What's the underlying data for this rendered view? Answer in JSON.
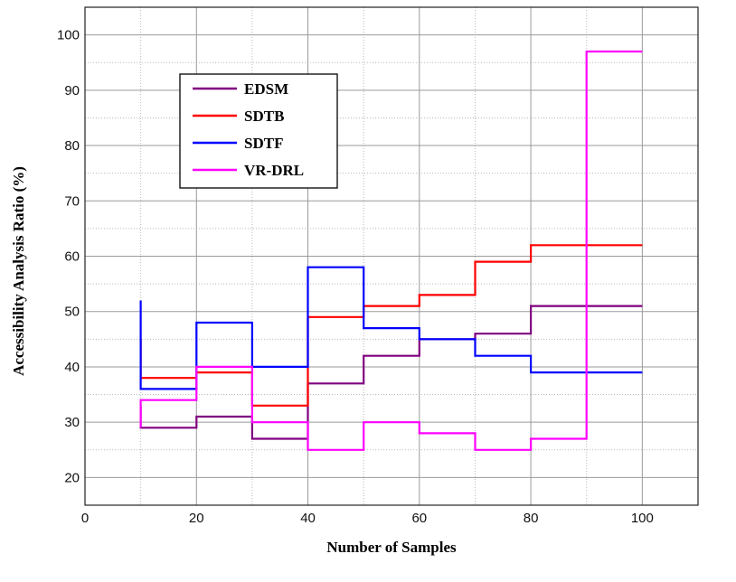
{
  "chart_data": {
    "type": "line",
    "step": true,
    "xlabel": "Number of Samples",
    "ylabel": "Accessibility Analysis  Ratio (%)",
    "xlim": [
      0,
      110
    ],
    "ylim": [
      15,
      105
    ],
    "x_ticks": [
      0,
      20,
      40,
      60,
      80,
      100
    ],
    "y_ticks": [
      20,
      30,
      40,
      50,
      60,
      70,
      80,
      90,
      100
    ],
    "grid": true,
    "legend_position": "upper-left",
    "series": [
      {
        "name": "EDSM",
        "color": "#800080",
        "x": [
          10,
          20,
          30,
          40,
          50,
          60,
          70,
          80,
          90,
          100
        ],
        "values": [
          33,
          29,
          31,
          27,
          37,
          42,
          45,
          46,
          51,
          51
        ]
      },
      {
        "name": "SDTB",
        "color": "#ff0000",
        "x": [
          10,
          20,
          30,
          40,
          50,
          60,
          70,
          80,
          90,
          100
        ],
        "values": [
          45,
          38,
          39,
          33,
          49,
          51,
          53,
          59,
          62,
          62
        ]
      },
      {
        "name": "SDTF",
        "color": "#0000ff",
        "x": [
          10,
          20,
          30,
          40,
          50,
          60,
          70,
          80,
          90,
          100
        ],
        "values": [
          52,
          36,
          48,
          40,
          58,
          47,
          45,
          42,
          39,
          39
        ]
      },
      {
        "name": "VR-DRL",
        "color": "#ff00ff",
        "x": [
          10,
          20,
          30,
          40,
          50,
          60,
          70,
          80,
          90,
          100
        ],
        "values": [
          29,
          34,
          40,
          30,
          25,
          30,
          28,
          25,
          27,
          97
        ]
      }
    ]
  }
}
